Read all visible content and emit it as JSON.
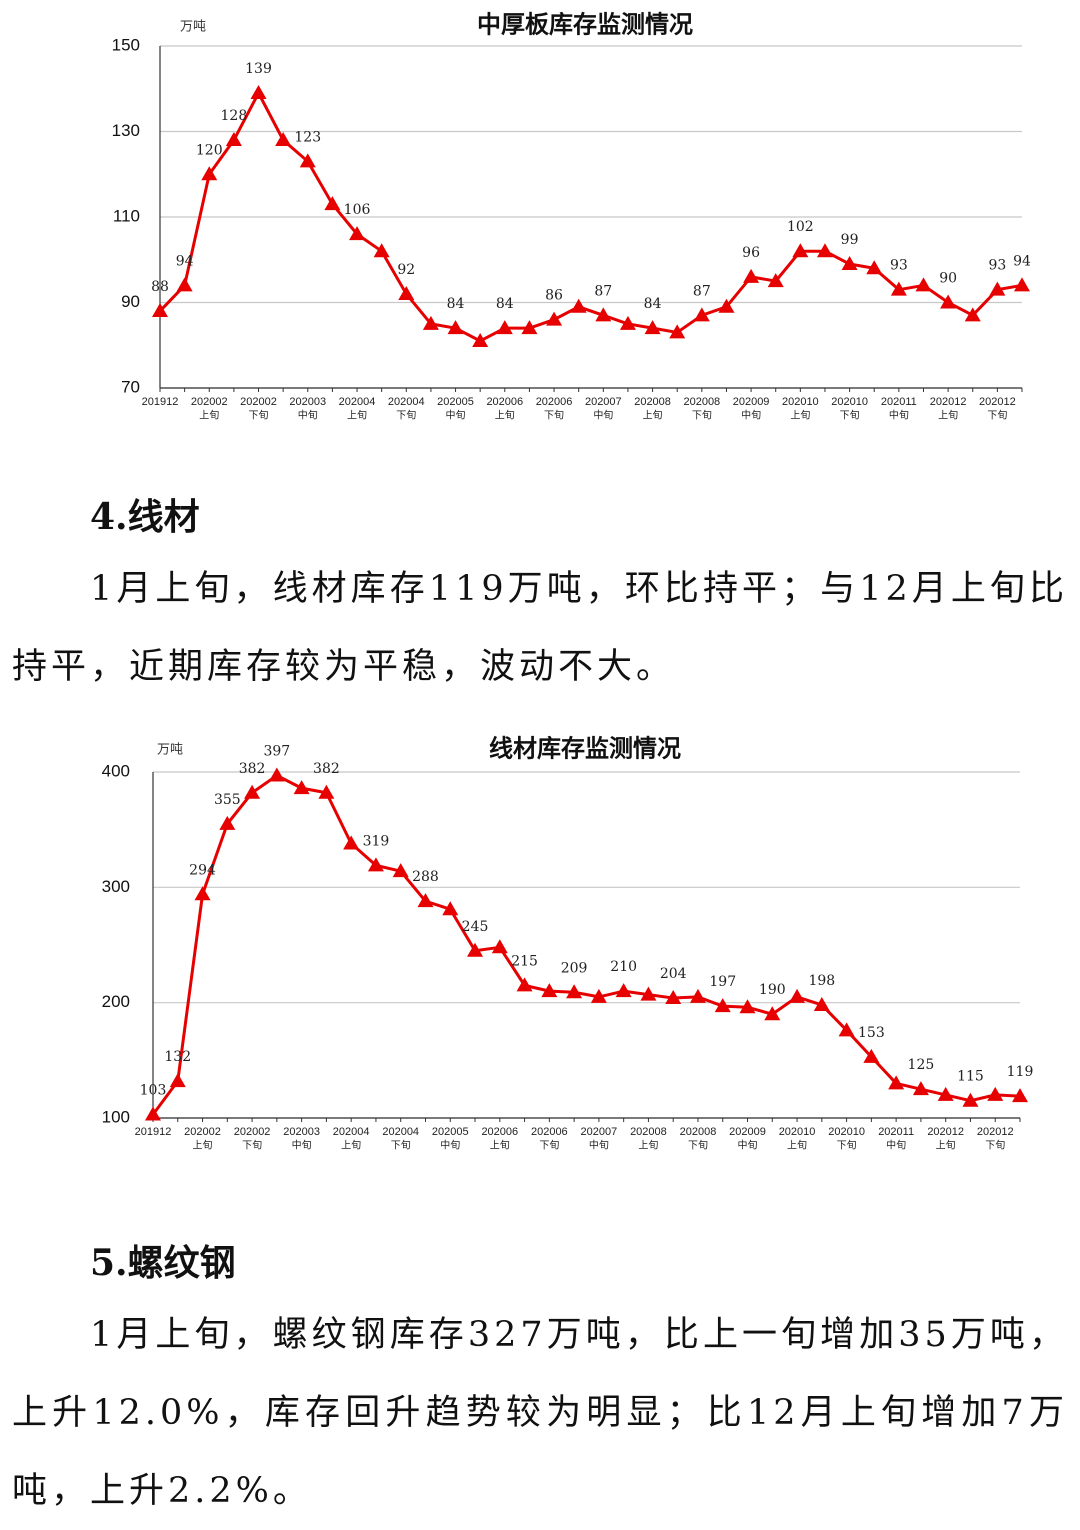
{
  "chart_data": [
    {
      "type": "line",
      "title": "中厚板库存监测情况",
      "ylabel": "万吨",
      "color": "#e60000",
      "ylim": [
        70,
        150
      ],
      "yticks": [
        70,
        90,
        110,
        130,
        150
      ],
      "grid": true,
      "categories": [
        [
          "201912"
        ],
        null,
        [
          "202002",
          "上旬"
        ],
        null,
        [
          "202002",
          "下旬"
        ],
        null,
        [
          "202003",
          "中旬"
        ],
        null,
        [
          "202004",
          "上旬"
        ],
        null,
        [
          "202004",
          "下旬"
        ],
        null,
        [
          "202005",
          "中旬"
        ],
        null,
        [
          "202006",
          "上旬"
        ],
        null,
        [
          "202006",
          "下旬"
        ],
        null,
        [
          "202007",
          "中旬"
        ],
        null,
        [
          "202008",
          "上旬"
        ],
        null,
        [
          "202008",
          "下旬"
        ],
        null,
        [
          "202009",
          "中旬"
        ],
        null,
        [
          "202010",
          "上旬"
        ],
        null,
        [
          "202010",
          "下旬"
        ],
        null,
        [
          "202011",
          "中旬"
        ],
        null,
        [
          "202012",
          "上旬"
        ],
        null,
        [
          "202012",
          "下旬"
        ],
        null
      ],
      "values": [
        88,
        94,
        120,
        128,
        139,
        128,
        123,
        113,
        106,
        102,
        92,
        85,
        84,
        81,
        84,
        84,
        86,
        89,
        87,
        85,
        84,
        83,
        87,
        89,
        96,
        95,
        102,
        102,
        99,
        98,
        93,
        94,
        90,
        87,
        93,
        94
      ],
      "value_labels": [
        "88",
        "94",
        "120",
        "128",
        "139",
        null,
        "123",
        null,
        "106",
        null,
        "92",
        null,
        "84",
        null,
        "84",
        null,
        "86",
        null,
        "87",
        null,
        "84",
        null,
        "87",
        null,
        "96",
        null,
        "102",
        null,
        "99",
        null,
        "93",
        null,
        "90",
        null,
        "93",
        "94"
      ]
    },
    {
      "type": "line",
      "title": "线材库存监测情况",
      "ylabel": "万吨",
      "color": "#e60000",
      "ylim": [
        100,
        400
      ],
      "yticks": [
        100,
        200,
        300,
        400
      ],
      "grid": true,
      "categories": [
        [
          "201912"
        ],
        null,
        [
          "202002",
          "上旬"
        ],
        null,
        [
          "202002",
          "下旬"
        ],
        null,
        [
          "202003",
          "中旬"
        ],
        null,
        [
          "202004",
          "上旬"
        ],
        null,
        [
          "202004",
          "下旬"
        ],
        null,
        [
          "202005",
          "中旬"
        ],
        null,
        [
          "202006",
          "上旬"
        ],
        null,
        [
          "202006",
          "下旬"
        ],
        null,
        [
          "202007",
          "中旬"
        ],
        null,
        [
          "202008",
          "上旬"
        ],
        null,
        [
          "202008",
          "下旬"
        ],
        null,
        [
          "202009",
          "中旬"
        ],
        null,
        [
          "202010",
          "上旬"
        ],
        null,
        [
          "202010",
          "下旬"
        ],
        null,
        [
          "202011",
          "中旬"
        ],
        null,
        [
          "202012",
          "上旬"
        ],
        null,
        [
          "202012",
          "下旬"
        ],
        null
      ],
      "values": [
        103,
        132,
        294,
        355,
        382,
        397,
        386,
        382,
        338,
        319,
        314,
        288,
        281,
        245,
        248,
        215,
        210,
        209,
        205,
        210,
        207,
        204,
        205,
        197,
        196,
        190,
        205,
        198,
        176,
        153,
        130,
        125,
        120,
        115,
        120,
        119
      ],
      "value_labels": [
        "103",
        "132",
        "294",
        "355",
        "382",
        "397",
        null,
        "382",
        null,
        "319",
        null,
        "288",
        null,
        "245",
        null,
        "215",
        null,
        "209",
        null,
        "210",
        null,
        "204",
        null,
        "197",
        null,
        "190",
        null,
        "198",
        null,
        "153",
        null,
        "125",
        null,
        "115",
        null,
        "119"
      ]
    }
  ],
  "sections": [
    {
      "heading": "4.线材",
      "paragraph": "1月上旬，线材库存119万吨，环比持平；与12月上旬比持平，近期库存较为平稳，波动不大。"
    },
    {
      "heading": "5.螺纹钢",
      "paragraph": "1月上旬，螺纹钢库存327万吨，比上一旬增加35万吨，上升12.0%，库存回升趋势较为明显；比12月上旬增加7万吨，上升2.2%。"
    }
  ]
}
